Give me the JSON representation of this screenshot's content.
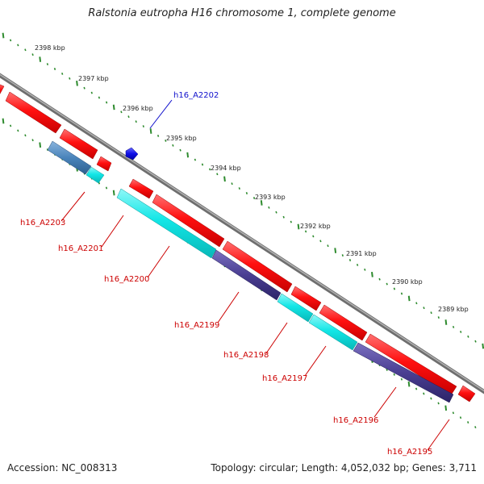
{
  "title": "Ralstonia eutropha H16 chromosome 1, complete genome",
  "footer": {
    "accession": "Accession: NC_008313",
    "summary": "Topology: circular; Length: 4,052,032 bp; Genes: 3,711"
  },
  "colors": {
    "backbone": "#8a8a8a",
    "tick_dots": "#2e8b2e",
    "gene_red": "#ff1010",
    "gene_cyan": "#11e8e8",
    "gene_steel": "#4a84bb",
    "gene_navy": "#4a3e92",
    "gene_blue": "#1010e8",
    "label_red": "#cc0000",
    "label_blue": "#1010cc"
  },
  "ruler": {
    "ticks": [
      "2398 kbp",
      "2397 kbp",
      "2396 kbp",
      "2395 kbp",
      "2394 kbp",
      "2393 kbp",
      "2392 kbp",
      "2391 kbp",
      "2390 kbp",
      "2389 kbp"
    ]
  },
  "gene_labels": {
    "a2202": "h16_A2202",
    "a2203": "h16_A2203",
    "a2201": "h16_A2201",
    "a2200": "h16_A2200",
    "a2199": "h16_A2199",
    "a2198": "h16_A2198",
    "a2197": "h16_A2197",
    "a2196": "h16_A2196",
    "a2195": "h16_A2195"
  }
}
